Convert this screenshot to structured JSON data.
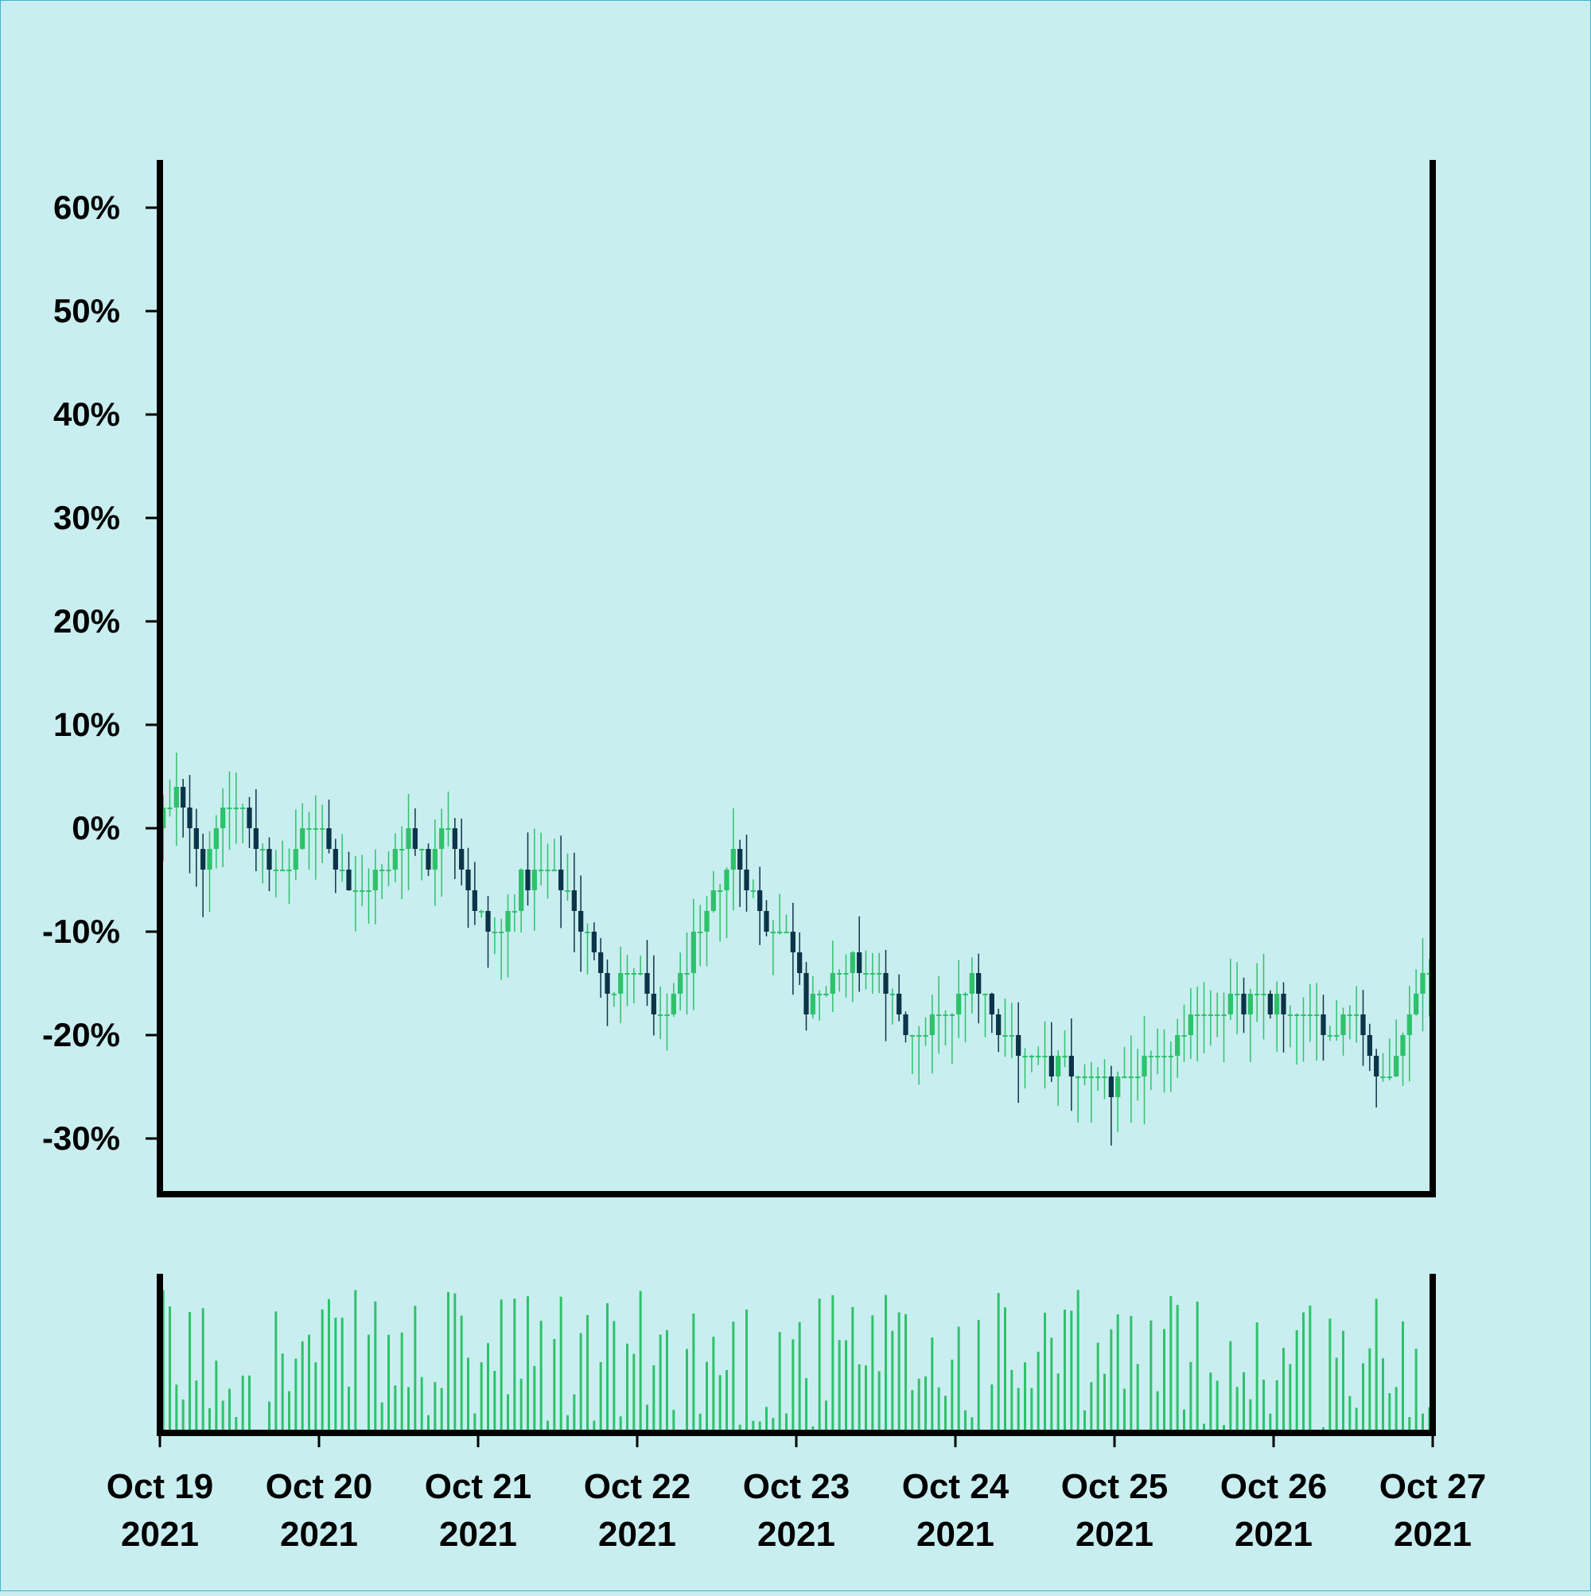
{
  "colors": {
    "background": "#c9eef0",
    "up": "#2ec26a",
    "down": "#0c3448",
    "volume": "#2ec26a",
    "axis": "#000000"
  },
  "chart_data": {
    "type": "candlestick",
    "title": "",
    "xlabel": "",
    "ylabel": "",
    "y_unit": "percent change",
    "ylim": [
      -35,
      65
    ],
    "y_ticks": [
      -30,
      -20,
      -10,
      0,
      10,
      20,
      30,
      40,
      50,
      60
    ],
    "y_tick_labels": [
      "-30%",
      "-20%",
      "-10%",
      "0%",
      "10%",
      "20%",
      "30%",
      "40%",
      "50%",
      "60%"
    ],
    "x_range": [
      "2021-10-19",
      "2021-10-27"
    ],
    "x_ticks": [
      "2021-10-19",
      "2021-10-20",
      "2021-10-21",
      "2021-10-22",
      "2021-10-23",
      "2021-10-24",
      "2021-10-25",
      "2021-10-26",
      "2021-10-27"
    ],
    "x_tick_labels": [
      [
        "Oct 19",
        "2021"
      ],
      [
        "Oct 20",
        "2021"
      ],
      [
        "Oct 21",
        "2021"
      ],
      [
        "Oct 22",
        "2021"
      ],
      [
        "Oct 23",
        "2021"
      ],
      [
        "Oct 24",
        "2021"
      ],
      [
        "Oct 25",
        "2021"
      ],
      [
        "Oct 26",
        "2021"
      ],
      [
        "Oct 27",
        "2021"
      ]
    ],
    "grid": false,
    "legend": "none",
    "candle_interval": "1 hour (approx.)",
    "price_path_keypoints": [
      [
        "2021-10-19 00:00",
        0
      ],
      [
        "2021-10-19 03:00",
        3
      ],
      [
        "2021-10-19 07:00",
        -4
      ],
      [
        "2021-10-19 11:00",
        3
      ],
      [
        "2021-10-19 15:00",
        -1
      ],
      [
        "2021-10-19 19:00",
        -5
      ],
      [
        "2021-10-20 00:00",
        1
      ],
      [
        "2021-10-20 05:00",
        -6
      ],
      [
        "2021-10-20 09:00",
        -5
      ],
      [
        "2021-10-20 14:00",
        -1
      ],
      [
        "2021-10-20 17:00",
        -3
      ],
      [
        "2021-10-20 20:00",
        1
      ],
      [
        "2021-10-21 00:00",
        -8
      ],
      [
        "2021-10-21 03:00",
        -11
      ],
      [
        "2021-10-21 07:00",
        -5
      ],
      [
        "2021-10-21 11:00",
        -4
      ],
      [
        "2021-10-21 15:00",
        -8
      ],
      [
        "2021-10-21 20:00",
        -16
      ],
      [
        "2021-10-22 00:00",
        -13
      ],
      [
        "2021-10-22 04:00",
        -19
      ],
      [
        "2021-10-22 07:00",
        -15
      ],
      [
        "2021-10-22 12:00",
        -6
      ],
      [
        "2021-10-22 15:00",
        -3
      ],
      [
        "2021-10-22 20:00",
        -9
      ],
      [
        "2021-10-23 00:00",
        -11
      ],
      [
        "2021-10-23 02:00",
        -17
      ],
      [
        "2021-10-23 06:00",
        -15
      ],
      [
        "2021-10-23 09:00",
        -13
      ],
      [
        "2021-10-23 14:00",
        -16
      ],
      [
        "2021-10-23 18:00",
        -20
      ],
      [
        "2021-10-24 00:00",
        -18
      ],
      [
        "2021-10-24 03:00",
        -14
      ],
      [
        "2021-10-24 06:00",
        -18
      ],
      [
        "2021-10-24 10:00",
        -21
      ],
      [
        "2021-10-24 14:00",
        -23
      ],
      [
        "2021-10-24 21:00",
        -24
      ],
      [
        "2021-10-25 00:00",
        -25
      ],
      [
        "2021-10-25 06:00",
        -23
      ],
      [
        "2021-10-25 12:00",
        -19
      ],
      [
        "2021-10-25 16:00",
        -17
      ],
      [
        "2021-10-26 00:00",
        -17
      ],
      [
        "2021-10-26 04:00",
        -18
      ],
      [
        "2021-10-26 09:00",
        -20
      ],
      [
        "2021-10-26 12:00",
        -18
      ],
      [
        "2021-10-26 14:00",
        -20
      ],
      [
        "2021-10-26 16:00",
        -25
      ],
      [
        "2021-10-26 20:00",
        -20
      ],
      [
        "2021-10-27 00:00",
        -13
      ]
    ],
    "volume_range": [
      0,
      140
    ]
  }
}
